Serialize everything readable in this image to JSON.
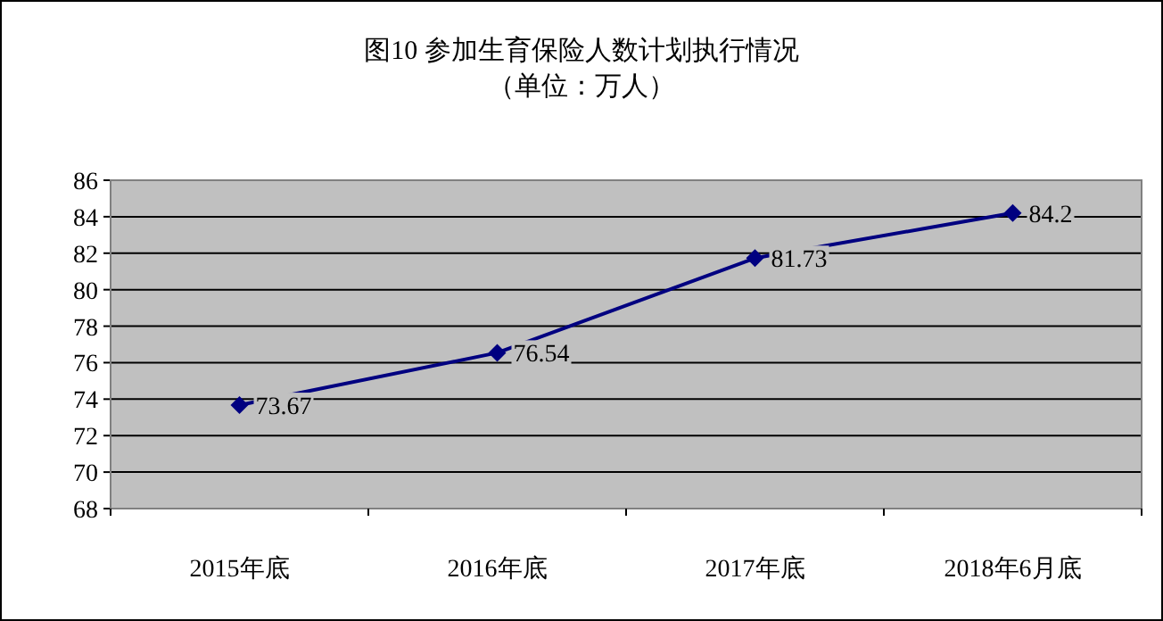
{
  "chart_data": {
    "type": "line",
    "title": "图10 参加生育保险人数计划执行情况",
    "subtitle": "（单位：万人）",
    "categories": [
      "2015年底",
      "2016年底",
      "2017年底",
      "2018年6月底"
    ],
    "series": [
      {
        "color": "#000080",
        "values": [
          73.67,
          76.54,
          81.73,
          84.2
        ]
      }
    ],
    "ylim": [
      68,
      86
    ],
    "yticks": [
      68,
      70,
      72,
      74,
      76,
      78,
      80,
      82,
      84,
      86
    ],
    "grid": "y",
    "marker": "diamond",
    "data_labels": true
  }
}
